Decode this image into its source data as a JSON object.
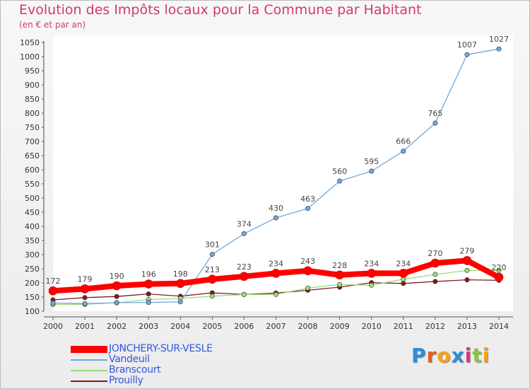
{
  "title": "Evolution des Impôts locaux pour la Commune par Habitant",
  "subtitle": "(en € et par an)",
  "logo": {
    "letters": [
      "P",
      "r",
      "o",
      "x",
      "i",
      "t",
      "i"
    ],
    "colors": [
      "#2a8fd9",
      "#e8601d",
      "#f4a11a",
      "#2a8fd9",
      "#d63a7a",
      "#8cc63f",
      "#f4a11a"
    ]
  },
  "chart_data": {
    "type": "line",
    "x": [
      "2000",
      "2001",
      "2002",
      "2003",
      "2004",
      "2005",
      "2006",
      "2007",
      "2008",
      "2009",
      "2010",
      "2011",
      "2012",
      "2013",
      "2014"
    ],
    "ylim": [
      100,
      1050
    ],
    "yticks": [
      "100",
      "150",
      "200",
      "250",
      "300",
      "350",
      "400",
      "450",
      "500",
      "550",
      "600",
      "650",
      "700",
      "750",
      "800",
      "850",
      "900",
      "950",
      "1000",
      "1050"
    ],
    "series": [
      {
        "name": "JONCHERY-SUR-VESLE",
        "color": "#ff0000",
        "values": [
          172,
          179,
          190,
          196,
          198,
          213,
          223,
          234,
          243,
          228,
          234,
          234,
          270,
          279,
          220
        ],
        "labels": [
          "172",
          "179",
          "190",
          "196",
          "198",
          "213",
          "223",
          "234",
          "243",
          "228",
          "234",
          "234",
          "270",
          "279",
          "220"
        ]
      },
      {
        "name": "Vandeuil",
        "color": "#6fa8dc",
        "values": [
          129,
          127,
          130,
          131,
          133,
          301,
          374,
          430,
          463,
          560,
          595,
          666,
          765,
          1007,
          1027
        ],
        "labels": [
          "",
          "",
          "",
          "",
          "",
          "301",
          "374",
          "430",
          "463",
          "560",
          "595",
          "666",
          "765",
          "1007",
          "1027"
        ]
      },
      {
        "name": "Branscourt",
        "color": "#99dd77",
        "values": [
          124,
          124,
          130,
          141,
          145,
          153,
          159,
          159,
          182,
          194,
          192,
          213,
          230,
          244,
          244
        ],
        "labels": [
          "",
          "",
          "",
          "",
          "",
          "",
          "",
          "",
          "",
          "",
          "",
          "",
          "",
          "",
          ""
        ]
      },
      {
        "name": "Prouilly",
        "color": "#7b1e1e",
        "values": [
          140,
          148,
          152,
          161,
          153,
          165,
          159,
          164,
          174,
          185,
          201,
          198,
          205,
          211,
          209
        ],
        "labels": [
          "",
          "",
          "",
          "",
          "",
          "",
          "",
          "",
          "",
          "",
          "",
          "",
          "",
          "",
          ""
        ]
      }
    ],
    "legend": "bottom-left",
    "grid": false
  }
}
